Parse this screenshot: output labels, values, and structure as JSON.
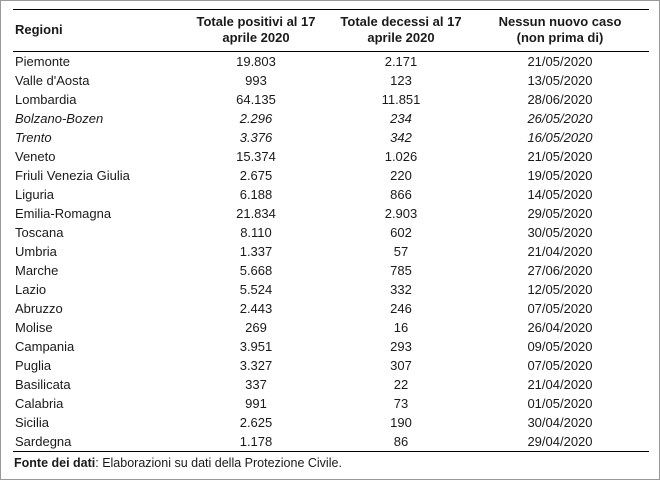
{
  "table": {
    "columns": [
      "Regioni",
      "Totale positivi al 17 aprile 2020",
      "Totale decessi al 17 aprile 2020",
      "Nessun nuovo caso (non prima di)"
    ],
    "rows": [
      {
        "region": "Piemonte",
        "positivi": "19.803",
        "decessi": "2.171",
        "nessun_nuovo_caso": "21/05/2020",
        "italic": false
      },
      {
        "region": "Valle d'Aosta",
        "positivi": "993",
        "decessi": "123",
        "nessun_nuovo_caso": "13/05/2020",
        "italic": false
      },
      {
        "region": "Lombardia",
        "positivi": "64.135",
        "decessi": "11.851",
        "nessun_nuovo_caso": "28/06/2020",
        "italic": false
      },
      {
        "region": "Bolzano-Bozen",
        "positivi": "2.296",
        "decessi": "234",
        "nessun_nuovo_caso": "26/05/2020",
        "italic": true
      },
      {
        "region": "Trento",
        "positivi": "3.376",
        "decessi": "342",
        "nessun_nuovo_caso": "16/05/2020",
        "italic": true
      },
      {
        "region": "Veneto",
        "positivi": "15.374",
        "decessi": "1.026",
        "nessun_nuovo_caso": "21/05/2020",
        "italic": false
      },
      {
        "region": "Friuli Venezia Giulia",
        "positivi": "2.675",
        "decessi": "220",
        "nessun_nuovo_caso": "19/05/2020",
        "italic": false
      },
      {
        "region": "Liguria",
        "positivi": "6.188",
        "decessi": "866",
        "nessun_nuovo_caso": "14/05/2020",
        "italic": false
      },
      {
        "region": "Emilia-Romagna",
        "positivi": "21.834",
        "decessi": "2.903",
        "nessun_nuovo_caso": "29/05/2020",
        "italic": false
      },
      {
        "region": "Toscana",
        "positivi": "8.110",
        "decessi": "602",
        "nessun_nuovo_caso": "30/05/2020",
        "italic": false
      },
      {
        "region": "Umbria",
        "positivi": "1.337",
        "decessi": "57",
        "nessun_nuovo_caso": "21/04/2020",
        "italic": false
      },
      {
        "region": "Marche",
        "positivi": "5.668",
        "decessi": "785",
        "nessun_nuovo_caso": "27/06/2020",
        "italic": false
      },
      {
        "region": "Lazio",
        "positivi": "5.524",
        "decessi": "332",
        "nessun_nuovo_caso": "12/05/2020",
        "italic": false
      },
      {
        "region": "Abruzzo",
        "positivi": "2.443",
        "decessi": "246",
        "nessun_nuovo_caso": "07/05/2020",
        "italic": false
      },
      {
        "region": "Molise",
        "positivi": "269",
        "decessi": "16",
        "nessun_nuovo_caso": "26/04/2020",
        "italic": false
      },
      {
        "region": "Campania",
        "positivi": "3.951",
        "decessi": "293",
        "nessun_nuovo_caso": "09/05/2020",
        "italic": false
      },
      {
        "region": "Puglia",
        "positivi": "3.327",
        "decessi": "307",
        "nessun_nuovo_caso": "07/05/2020",
        "italic": false
      },
      {
        "region": "Basilicata",
        "positivi": "337",
        "decessi": "22",
        "nessun_nuovo_caso": "21/04/2020",
        "italic": false
      },
      {
        "region": "Calabria",
        "positivi": "991",
        "decessi": "73",
        "nessun_nuovo_caso": "01/05/2020",
        "italic": false
      },
      {
        "region": "Sicilia",
        "positivi": "2.625",
        "decessi": "190",
        "nessun_nuovo_caso": "30/04/2020",
        "italic": false
      },
      {
        "region": "Sardegna",
        "positivi": "1.178",
        "decessi": "86",
        "nessun_nuovo_caso": "29/04/2020",
        "italic": false
      }
    ]
  },
  "footer": {
    "label": "Fonte dei dati",
    "text": ": Elaborazioni su dati della Protezione Civile."
  }
}
